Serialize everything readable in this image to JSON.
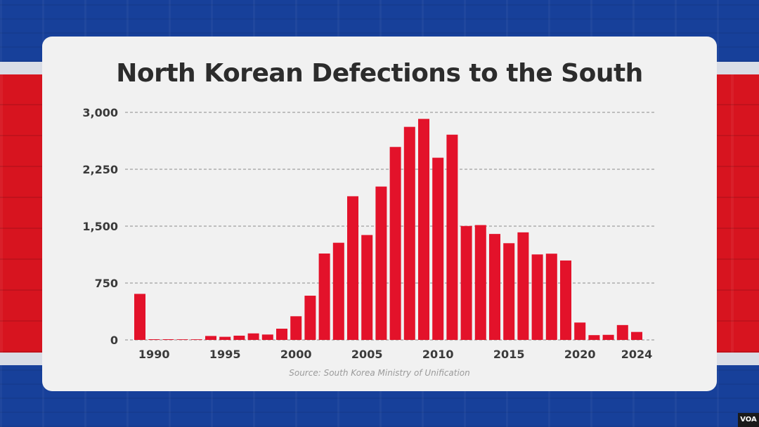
{
  "colors": {
    "bar": "#e3122a",
    "grid": "#8a8a8a",
    "axis_text": "#3a3a3a"
  },
  "logo": "VOA",
  "chart_data": {
    "type": "bar",
    "title": "North Korean Defections to the South",
    "source": "Source: South Korea Ministry of Unification",
    "x": [
      1989,
      1990,
      1991,
      1992,
      1993,
      1994,
      1995,
      1996,
      1997,
      1998,
      1999,
      2000,
      2001,
      2002,
      2003,
      2004,
      2005,
      2006,
      2007,
      2008,
      2009,
      2010,
      2011,
      2012,
      2013,
      2014,
      2015,
      2016,
      2017,
      2018,
      2019,
      2020,
      2021,
      2022,
      2023,
      2024
    ],
    "values": [
      607,
      9,
      9,
      8,
      8,
      52,
      41,
      56,
      86,
      71,
      148,
      312,
      583,
      1139,
      1281,
      1894,
      1383,
      2022,
      2544,
      2809,
      2914,
      2402,
      2706,
      1502,
      1514,
      1397,
      1275,
      1418,
      1127,
      1137,
      1047,
      229,
      63,
      67,
      196,
      105
    ],
    "x_tick_labels": [
      "1990",
      "1995",
      "2000",
      "2005",
      "2010",
      "2015",
      "2020",
      "2024"
    ],
    "x_ticks": [
      1990,
      1995,
      2000,
      2005,
      2010,
      2015,
      2020,
      2024
    ],
    "y_ticks": [
      0,
      750,
      1500,
      2250,
      3000
    ],
    "y_tick_labels": [
      "0",
      "750",
      "1,500",
      "2,250",
      "3,000"
    ],
    "ylim": [
      0,
      3000
    ],
    "grid": true,
    "xlabel": "",
    "ylabel": ""
  }
}
